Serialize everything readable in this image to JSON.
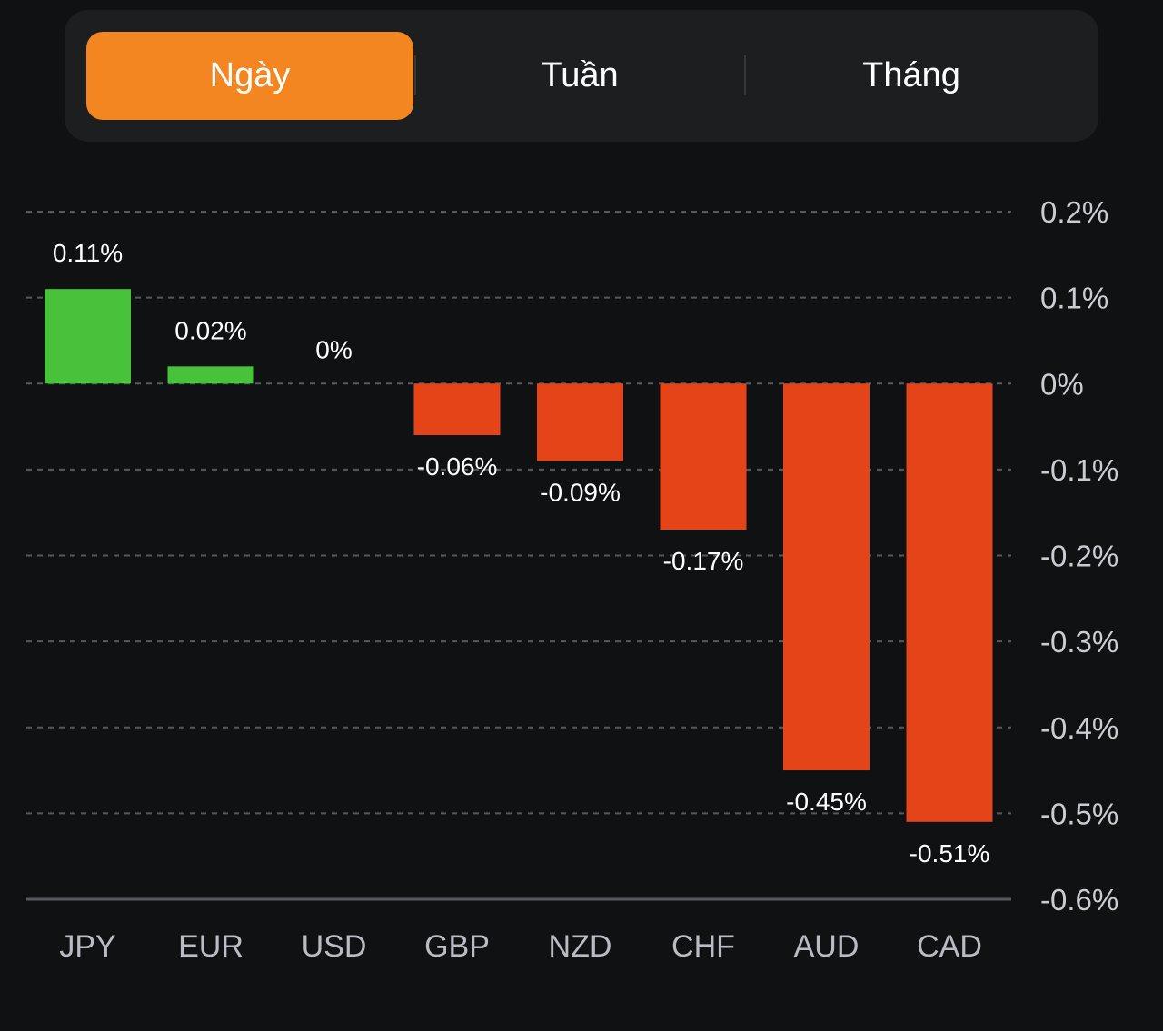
{
  "period_tabs": {
    "items": [
      {
        "label": "Ngày",
        "active": true
      },
      {
        "label": "Tuần",
        "active": false
      },
      {
        "label": "Tháng",
        "active": false
      }
    ]
  },
  "colors": {
    "positive": "#47c23a",
    "negative": "#e54318",
    "accent": "#f48622",
    "grid": "#55595e",
    "axis": "#55595e"
  },
  "chart_data": {
    "type": "bar",
    "title": "",
    "xlabel": "",
    "ylabel": "",
    "categories": [
      "JPY",
      "EUR",
      "USD",
      "GBP",
      "NZD",
      "CHF",
      "AUD",
      "CAD"
    ],
    "values": [
      0.11,
      0.02,
      0,
      -0.06,
      -0.09,
      -0.17,
      -0.45,
      -0.51
    ],
    "value_labels": [
      "0.11%",
      "0.02%",
      "0%",
      "-0.06%",
      "-0.09%",
      "-0.17%",
      "-0.45%",
      "-0.51%"
    ],
    "unit": "%",
    "ylim": [
      -0.6,
      0.2
    ],
    "yticks": [
      0.2,
      0.1,
      0,
      -0.1,
      -0.2,
      -0.3,
      -0.4,
      -0.5,
      -0.6
    ],
    "ytick_labels": [
      "0.2%",
      "0.1%",
      "0%",
      "-0.1%",
      "-0.2%",
      "-0.3%",
      "-0.4%",
      "-0.5%",
      "-0.6%"
    ],
    "y_axis_side": "right",
    "grid": true,
    "grid_style": "dashed",
    "legend": "none"
  }
}
